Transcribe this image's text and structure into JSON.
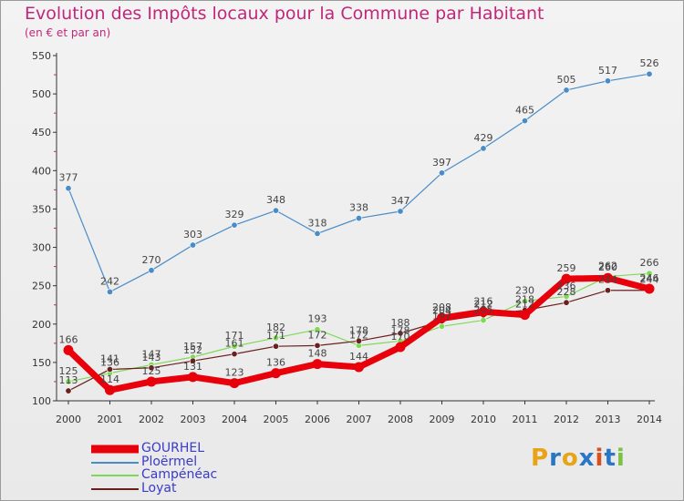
{
  "title": "Evolution des Impôts locaux pour la Commune par Habitant",
  "subtitle": "(en € et par an)",
  "logo": {
    "text": "Proxiti",
    "colors": [
      "#e8a317",
      "#2a76c6",
      "#e8a317",
      "#2a76c6",
      "#d94f1e",
      "#2a76c6",
      "#7cc242"
    ]
  },
  "chart_data": {
    "type": "line",
    "x": [
      "2000",
      "2001",
      "2002",
      "2003",
      "2004",
      "2005",
      "2006",
      "2007",
      "2008",
      "2009",
      "2010",
      "2011",
      "2012",
      "2013",
      "2014"
    ],
    "ylim": [
      100,
      550
    ],
    "yticks": [
      100,
      150,
      200,
      250,
      300,
      350,
      400,
      450,
      500,
      550
    ],
    "grid": false,
    "legend_position": "bottom-left",
    "series": [
      {
        "name": "GOURHEL",
        "color": "#e8000a",
        "values": [
          166,
          114,
          125,
          131,
          123,
          136,
          148,
          144,
          170,
          208,
          216,
          212,
          259,
          260,
          246
        ]
      },
      {
        "name": "Ploërmel",
        "color": "#4a8cc7",
        "values": [
          377,
          242,
          270,
          303,
          329,
          348,
          318,
          338,
          347,
          397,
          429,
          465,
          505,
          517,
          526
        ]
      },
      {
        "name": "Campénéac",
        "color": "#7ed957",
        "values": [
          125,
          136,
          147,
          157,
          171,
          182,
          193,
          172,
          178,
          197,
          205,
          230,
          236,
          262,
          266
        ]
      },
      {
        "name": "Loyat",
        "color": "#6b2020",
        "values": [
          113,
          141,
          143,
          152,
          161,
          171,
          172,
          178,
          188,
          204,
          212,
          218,
          228,
          244,
          244
        ]
      }
    ]
  }
}
